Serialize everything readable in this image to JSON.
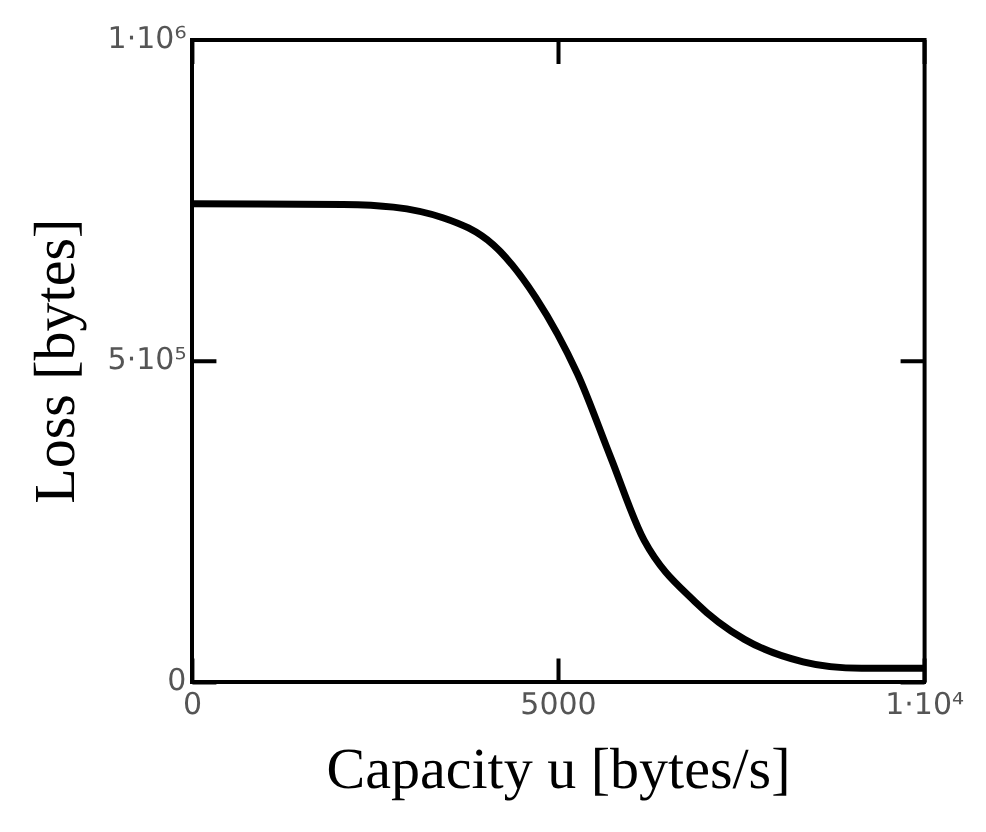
{
  "chart_data": {
    "type": "line",
    "xlabel": "Capacity u [bytes/s]",
    "ylabel": "Loss [bytes]",
    "x": [
      0,
      2060,
      3430,
      4110,
      4690,
      5260,
      5710,
      6170,
      6860,
      7540,
      8340,
      9140,
      10000
    ],
    "series": [
      {
        "color": "#000000",
        "values": [
          745000,
          744000,
          723000,
          681000,
          599000,
          480000,
          351000,
          221000,
          126000,
          67000,
          32000,
          22000,
          22000
        ]
      }
    ],
    "xlim": [
      0,
      10000
    ],
    "xticks": [
      0,
      5000,
      {
        "value": 10000,
        "label": "1·10⁴"
      }
    ],
    "ylim": [
      0,
      1000000
    ],
    "yticks": [
      0,
      {
        "value": 500000,
        "label": "5·10⁵"
      },
      {
        "value": 1000000,
        "label": "1·10⁶"
      }
    ],
    "grid": false,
    "legend": false,
    "marker": "none",
    "line_style": "solid"
  }
}
